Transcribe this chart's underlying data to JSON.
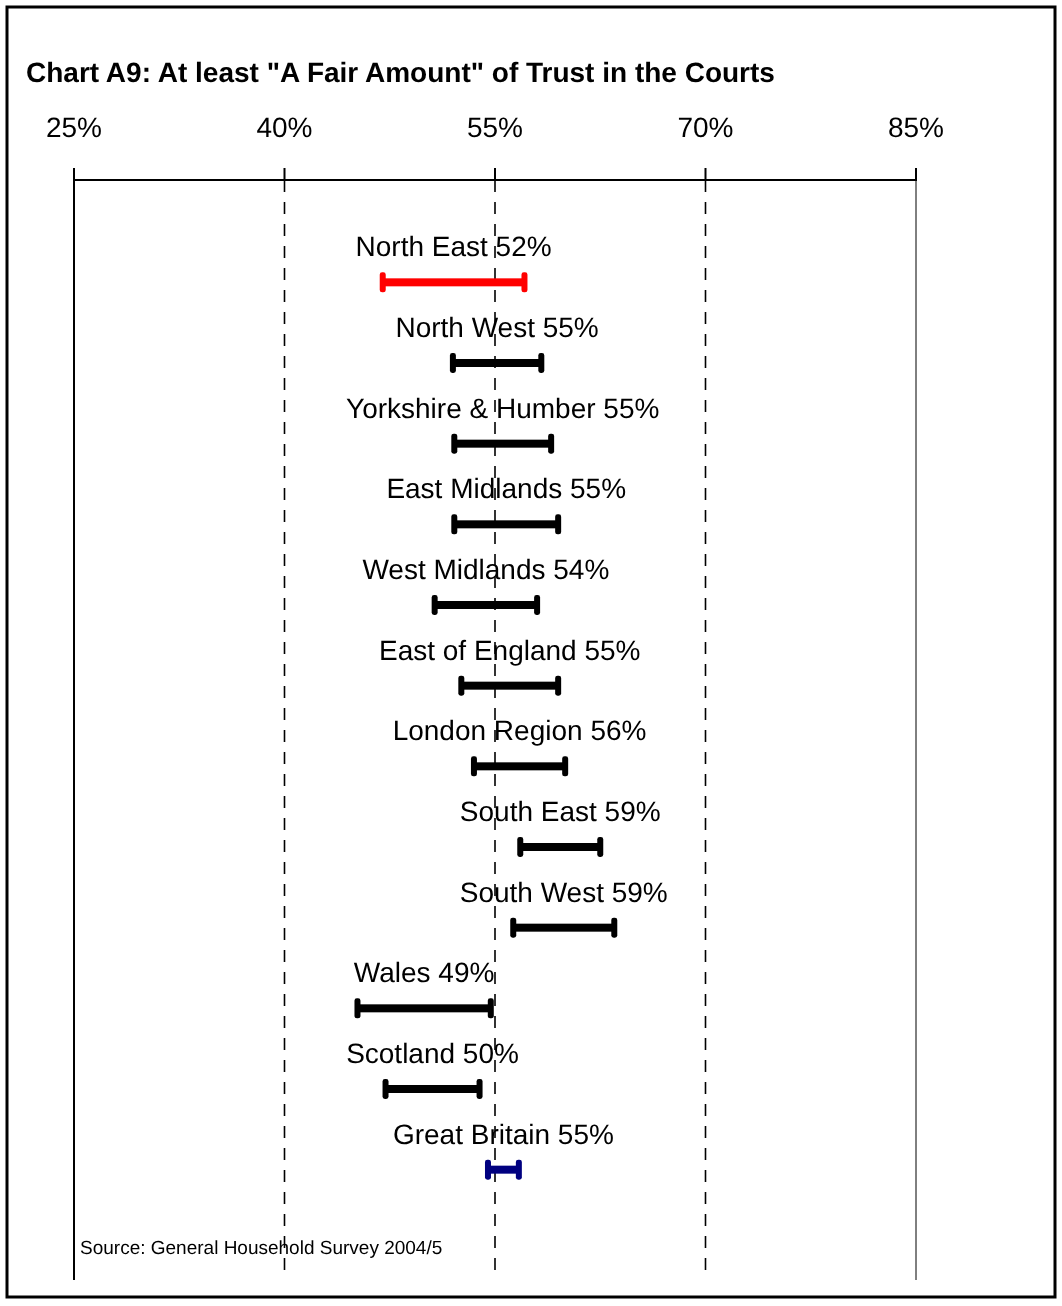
{
  "chart_data": {
    "type": "bar",
    "orientation": "horizontal",
    "title": "Chart A9: At least \"A Fair Amount\" of Trust in the Courts",
    "categories": [
      "North East 52%",
      "North West 55%",
      "Yorkshire & Humber 55%",
      "East Midlands 55%",
      "West Midlands 54%",
      "East of England 55%",
      "London Region 56%",
      "South East 59%",
      "South West 59%",
      "Wales 49%",
      "Scotland 50%",
      "Great Britain 55%"
    ],
    "base": [
      47.0,
      52.0,
      52.1,
      52.1,
      50.7,
      52.6,
      53.5,
      56.8,
      56.3,
      45.2,
      47.2,
      54.5
    ],
    "values": [
      10.1,
      6.3,
      6.9,
      7.4,
      7.3,
      6.9,
      6.5,
      5.7,
      7.2,
      9.5,
      6.7,
      2.2
    ],
    "colors": [
      "#ff0000",
      "#000000",
      "#000000",
      "#000000",
      "#000000",
      "#000000",
      "#000000",
      "#000000",
      "#000000",
      "#000000",
      "#000000",
      "#000080"
    ],
    "xlim": [
      25,
      85
    ],
    "xticks": [
      {
        "value": 25,
        "label": "25%"
      },
      {
        "value": 40,
        "label": "40%"
      },
      {
        "value": 55,
        "label": "55%"
      },
      {
        "value": 70,
        "label": "70%"
      },
      {
        "value": 85,
        "label": "85%"
      }
    ],
    "grid": "x",
    "line_style": "dashed",
    "annotations": [
      "Source: General Household Survey 2004/5"
    ]
  }
}
